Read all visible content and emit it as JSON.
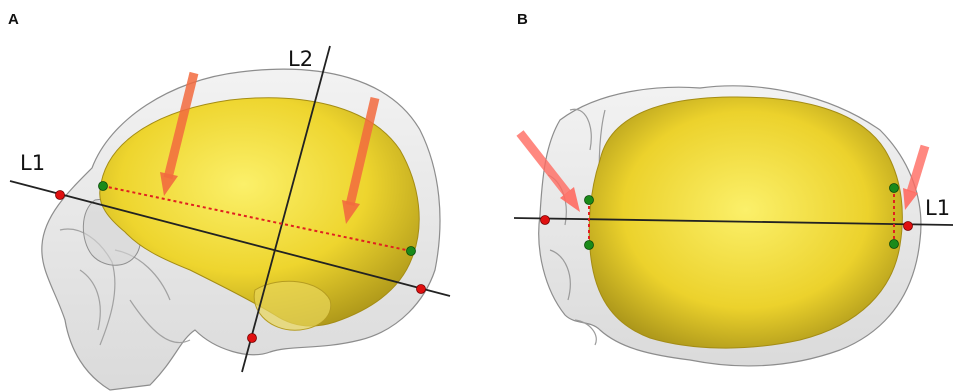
{
  "panels": {
    "a": {
      "letter": "A",
      "line_labels": [
        "L1",
        "L2"
      ],
      "view": "lateral"
    },
    "b": {
      "letter": "B",
      "line_labels": [
        "L1"
      ],
      "view": "superior"
    }
  },
  "colors": {
    "endocast": "#f2df3a",
    "endocast_shadow": "#b8a21e",
    "skull": "#c9c9c9",
    "arrow": "#ff5a4a",
    "arrow_orange": "#f07a2a",
    "landmark_red": "#e01010",
    "landmark_green": "#1a8a1a",
    "dotted_line": "#e02020",
    "axis_line": "#222222"
  }
}
